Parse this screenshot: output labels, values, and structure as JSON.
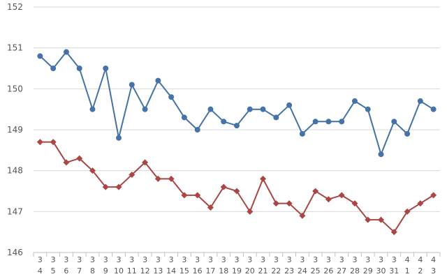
{
  "chart_data": {
    "type": "line",
    "title": "",
    "xlabel": "",
    "ylabel": "",
    "ylim": [
      146,
      152
    ],
    "yticks": [
      146,
      147,
      148,
      149,
      150,
      151,
      152
    ],
    "grid": true,
    "legend": "none",
    "categories": [
      [
        "3",
        "4"
      ],
      [
        "3",
        "5"
      ],
      [
        "3",
        "6"
      ],
      [
        "3",
        "7"
      ],
      [
        "3",
        "8"
      ],
      [
        "3",
        "9"
      ],
      [
        "3",
        "10"
      ],
      [
        "3",
        "11"
      ],
      [
        "3",
        "12"
      ],
      [
        "3",
        "13"
      ],
      [
        "3",
        "14"
      ],
      [
        "3",
        "15"
      ],
      [
        "3",
        "16"
      ],
      [
        "3",
        "17"
      ],
      [
        "3",
        "18"
      ],
      [
        "3",
        "19"
      ],
      [
        "3",
        "20"
      ],
      [
        "3",
        "21"
      ],
      [
        "3",
        "22"
      ],
      [
        "3",
        "23"
      ],
      [
        "3",
        "24"
      ],
      [
        "3",
        "25"
      ],
      [
        "3",
        "26"
      ],
      [
        "3",
        "27"
      ],
      [
        "3",
        "28"
      ],
      [
        "3",
        "29"
      ],
      [
        "3",
        "30"
      ],
      [
        "3",
        "31"
      ],
      [
        "4",
        "1"
      ],
      [
        "4",
        "2"
      ],
      [
        "4",
        "3"
      ]
    ],
    "series": [
      {
        "color": "#4572a7",
        "marker": "circle",
        "values": [
          150.8,
          150.5,
          150.9,
          150.5,
          149.5,
          150.5,
          148.8,
          150.1,
          149.5,
          150.2,
          149.8,
          149.3,
          149.0,
          149.5,
          149.2,
          149.1,
          149.5,
          149.5,
          149.3,
          149.6,
          148.9,
          149.2,
          149.2,
          149.2,
          149.7,
          149.5,
          148.4,
          149.2,
          148.9,
          149.7,
          149.5
        ]
      },
      {
        "color": "#aa4643",
        "marker": "diamond",
        "values": [
          148.7,
          148.7,
          148.2,
          148.3,
          148.0,
          147.6,
          147.6,
          147.9,
          148.2,
          147.8,
          147.8,
          147.4,
          147.4,
          147.1,
          147.6,
          147.5,
          147.0,
          147.8,
          147.2,
          147.2,
          146.9,
          147.5,
          147.3,
          147.4,
          147.2,
          146.8,
          146.8,
          146.5,
          147.0,
          147.2,
          147.4
        ]
      }
    ]
  }
}
